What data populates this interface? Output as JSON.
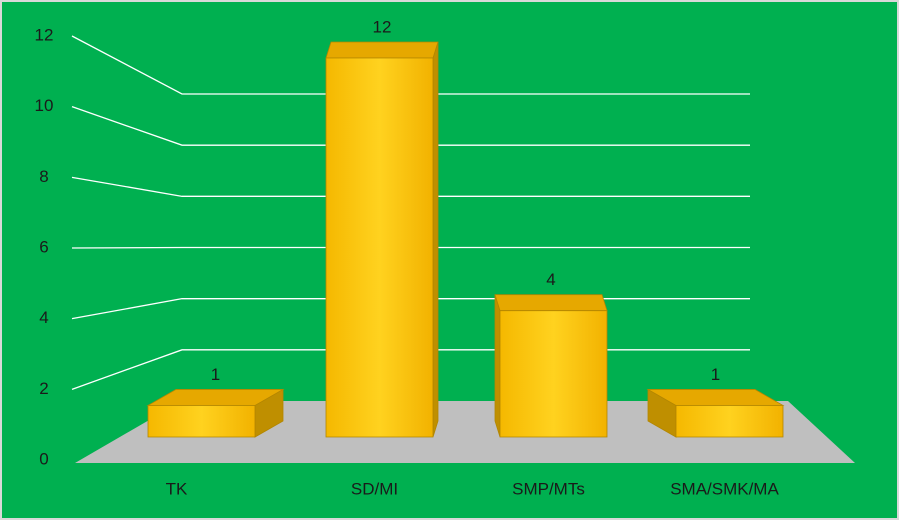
{
  "chart_data": {
    "type": "bar",
    "categories": [
      "TK",
      "SD/MI",
      "SMP/MTs",
      "SMA/SMK/MA"
    ],
    "values": [
      1,
      12,
      4,
      1
    ],
    "color": "#ffc000",
    "background": "#00b050",
    "ylim": [
      0,
      12
    ],
    "yticks": [
      0,
      2,
      4,
      6,
      8,
      10,
      12
    ],
    "grid": true
  }
}
